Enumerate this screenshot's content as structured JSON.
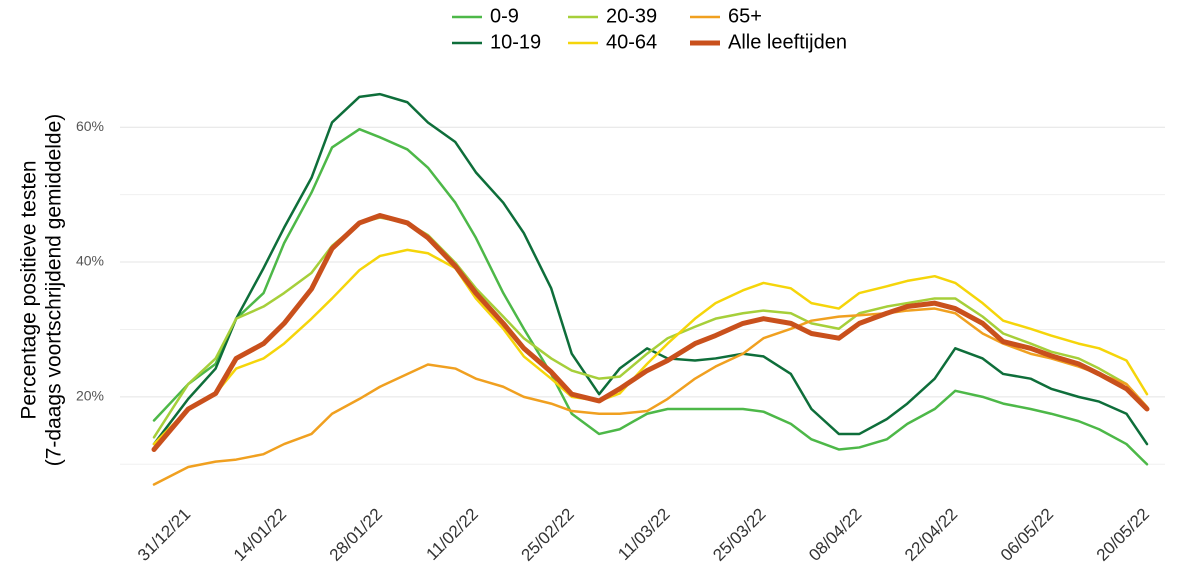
{
  "chart_data": {
    "type": "line",
    "y_label": [
      "Percentage positieve testen",
      "(7-daags voortschrijdend gemiddelde)"
    ],
    "x": [
      "26/12/21",
      "31/12/21",
      "04/01/22",
      "07/01/22",
      "11/01/22",
      "14/01/22",
      "18/01/22",
      "21/01/22",
      "25/01/22",
      "28/01/22",
      "01/02/22",
      "04/02/22",
      "08/02/22",
      "11/02/22",
      "15/02/22",
      "18/02/22",
      "22/02/22",
      "25/02/22",
      "01/03/22",
      "04/03/22",
      "08/03/22",
      "11/03/22",
      "15/03/22",
      "18/03/22",
      "22/03/22",
      "25/03/22",
      "29/03/22",
      "01/04/22",
      "05/04/22",
      "08/04/22",
      "12/04/22",
      "15/04/22",
      "19/04/22",
      "22/04/22",
      "26/04/22",
      "29/04/22",
      "03/05/22",
      "06/05/22",
      "10/05/22",
      "13/05/22",
      "17/05/22",
      "20/05/22"
    ],
    "series": [
      {
        "name": "0-9",
        "color": "#4db848",
        "values": [
          16.5,
          21.9,
          24.9,
          31.6,
          35.4,
          42.8,
          50.3,
          57,
          59.7,
          58.5,
          56.7,
          54,
          48.8,
          43.6,
          35.4,
          30.1,
          23.4,
          17.5,
          14.5,
          15.2,
          17.5,
          18.2,
          18.2,
          18.2,
          18.2,
          17.8,
          16,
          13.7,
          12.2,
          12.5,
          13.7,
          16,
          18.2,
          20.9,
          20,
          19,
          18.2,
          17.5,
          16.4,
          15.2,
          13,
          10
        ]
      },
      {
        "name": "10-19",
        "color": "#0e6e3a",
        "values": [
          13,
          19.7,
          24.2,
          31.6,
          39.1,
          45.1,
          52.5,
          60.7,
          64.5,
          64.9,
          63.7,
          60.7,
          57.8,
          53.3,
          48.8,
          44.3,
          36.1,
          26.4,
          20.4,
          24.2,
          27.2,
          25.7,
          25.4,
          25.7,
          26.4,
          26,
          23.4,
          18.2,
          14.5,
          14.5,
          16.7,
          19,
          22.7,
          27.2,
          25.7,
          23.4,
          22.7,
          21.2,
          20,
          19.3,
          17.5,
          13
        ]
      },
      {
        "name": "20-39",
        "color": "#a6cf3a",
        "values": [
          14,
          21.9,
          25.7,
          31.6,
          33.4,
          35.4,
          38.4,
          42.4,
          45.8,
          46.6,
          45.8,
          44,
          39.9,
          36.1,
          31.9,
          28.7,
          25.7,
          23.9,
          22.7,
          23,
          26.4,
          28.7,
          30.4,
          31.6,
          32.4,
          32.8,
          32.4,
          30.9,
          30.1,
          32.4,
          33.4,
          33.9,
          34.6,
          34.6,
          31.9,
          29.4,
          27.9,
          26.7,
          25.7,
          24.2,
          21.9,
          18.5
        ]
      },
      {
        "name": "40-64",
        "color": "#f5d50a",
        "values": [
          13,
          18.2,
          20.5,
          24.2,
          25.7,
          27.9,
          31.6,
          34.6,
          38.8,
          40.9,
          41.8,
          41.3,
          39.1,
          34.6,
          30.1,
          26,
          22.7,
          20,
          19.4,
          20.5,
          24.9,
          27.9,
          31.6,
          33.9,
          35.8,
          36.9,
          36.1,
          33.9,
          33.1,
          35.4,
          36.4,
          37.2,
          37.9,
          36.9,
          33.9,
          31.3,
          30.1,
          29.1,
          27.9,
          27.2,
          25.4,
          20.4
        ]
      },
      {
        "name": "65+",
        "color": "#f0a020",
        "values": [
          7,
          9.6,
          10.4,
          10.7,
          11.5,
          13,
          14.5,
          17.5,
          19.7,
          21.5,
          23.4,
          24.8,
          24.2,
          22.7,
          21.5,
          20,
          19,
          17.9,
          17.5,
          17.5,
          17.9,
          19.7,
          22.7,
          24.5,
          26.4,
          28.7,
          30.1,
          31.3,
          31.9,
          32.1,
          32.4,
          32.8,
          33.1,
          32.4,
          29.4,
          27.9,
          26.4,
          25.7,
          24.5,
          23.4,
          21.9,
          18.5
        ]
      },
      {
        "name": "Alle leeftijden",
        "color": "#c9501c",
        "values": [
          12.2,
          18.2,
          20.5,
          25.7,
          27.9,
          30.9,
          36,
          42,
          45.8,
          46.9,
          45.8,
          43.6,
          39.4,
          35.4,
          30.9,
          27.2,
          23.7,
          20.4,
          19.4,
          21.2,
          23.9,
          25.4,
          27.9,
          29.1,
          30.9,
          31.6,
          30.9,
          29.4,
          28.7,
          30.9,
          32.4,
          33.4,
          33.9,
          33.1,
          30.9,
          28.2,
          27.2,
          26.1,
          24.9,
          23.4,
          21.2,
          18.2
        ]
      }
    ],
    "xlim": [
      "26/12/21",
      "20/05/22"
    ],
    "xticks": [
      "31/12/21",
      "14/01/22",
      "28/01/22",
      "11/02/22",
      "25/02/22",
      "11/03/22",
      "25/03/22",
      "08/04/22",
      "22/04/22",
      "06/05/22",
      "20/05/22"
    ],
    "ylim": [
      5,
      67
    ],
    "yticks": [
      {
        "value": 20,
        "label": "20%"
      },
      {
        "value": 40,
        "label": "40%"
      },
      {
        "value": 60,
        "label": "60%"
      }
    ],
    "y_minor_grid": [
      10,
      30,
      50
    ],
    "grid": true,
    "legend": "top"
  }
}
